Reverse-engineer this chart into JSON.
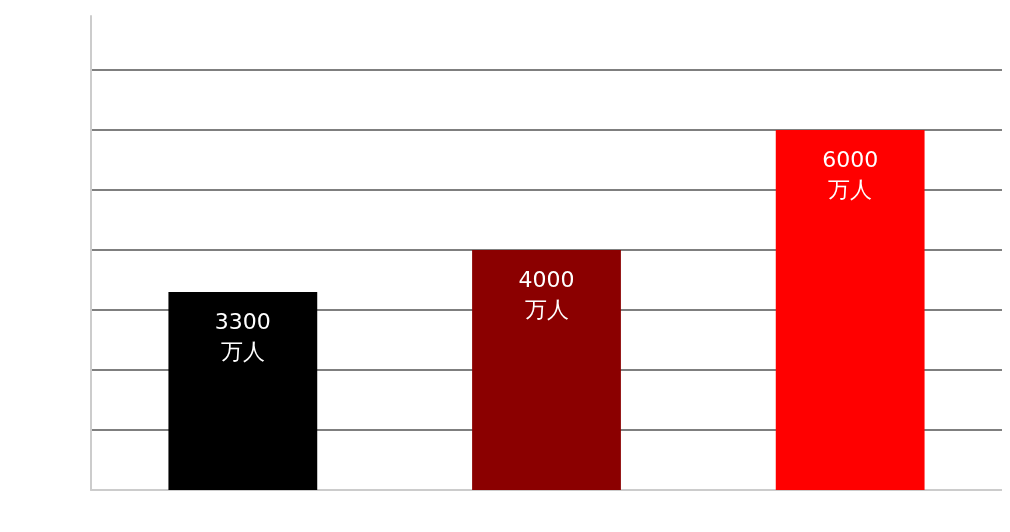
{
  "chart_data": {
    "type": "bar",
    "categories": [
      null,
      null,
      null
    ],
    "values": [
      3300,
      4000,
      6000
    ],
    "colors": [
      "#000000",
      "#8b0000",
      "#ff0000"
    ],
    "value_labels": [
      "3300\n万人",
      "4000\n万人",
      "6000\n万人"
    ],
    "ylim": [
      0,
      7900
    ],
    "yticks": [
      {
        "value": 0,
        "label": null
      },
      {
        "value": 1000,
        "label": null
      },
      {
        "value": 2000,
        "label": null
      },
      {
        "value": 3000,
        "label": null
      },
      {
        "value": 4000,
        "label": null
      },
      {
        "value": 5000,
        "label": null
      },
      {
        "value": 6000,
        "label": null
      },
      {
        "value": 7000,
        "label": null
      }
    ],
    "grid": "y"
  }
}
